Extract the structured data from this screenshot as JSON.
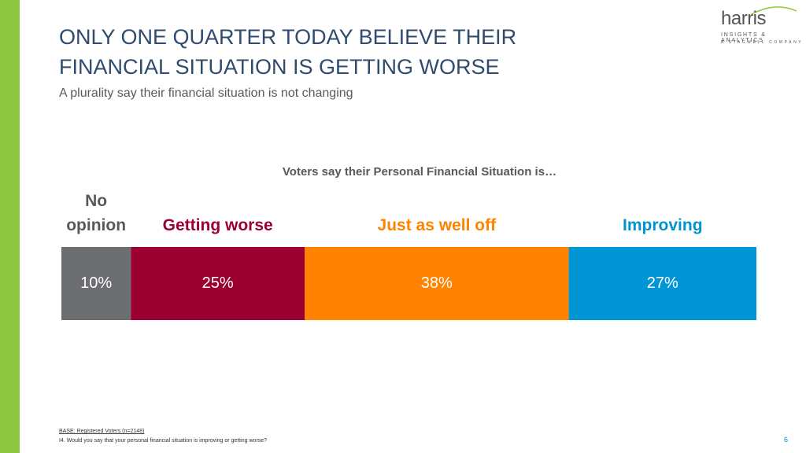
{
  "slide": {
    "title_lines": [
      "ONLY ONE QUARTER TODAY BELIEVE THEIR",
      "FINANCIAL SITUATION IS GETTING WORSE"
    ],
    "subtitle": "A plurality say their financial situation is not changing",
    "logo": {
      "name": "harris",
      "tagline": "INSIGHTS & ANALYTICS",
      "parent": "A STAGWELL COMPANY"
    },
    "footnotes": [
      "BASE: Registered Voters (n=2148)",
      "I4. Would you say that your personal financial situation is improving or getting worse?"
    ],
    "page_number": "6"
  },
  "chart_data": {
    "type": "stacked_bar",
    "title": "Voters say their Personal Financial Situation is…",
    "categories": [
      null
    ],
    "series": [
      {
        "name": "No opinion",
        "color": "#6d6e71",
        "label_color": "#595959",
        "values": [
          10
        ],
        "value_labels": [
          "10%"
        ]
      },
      {
        "name": "Getting worse",
        "color": "#9b0031",
        "label_color": "#9b0031",
        "values": [
          25
        ],
        "value_labels": [
          "25%"
        ]
      },
      {
        "name": "Just as well off",
        "color": "#ff8200",
        "label_color": "#ff8200",
        "values": [
          38
        ],
        "value_labels": [
          "38%"
        ]
      },
      {
        "name": "Improving",
        "color": "#0096d6",
        "label_color": "#0093d0",
        "values": [
          27
        ],
        "value_labels": [
          "27%"
        ]
      }
    ]
  }
}
